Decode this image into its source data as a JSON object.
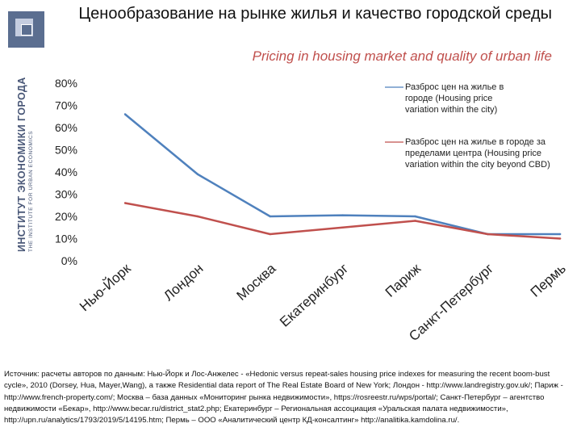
{
  "header": {
    "title_ru": "Ценообразование на рынке жилья и качество городской среды",
    "title_en": "Pricing in housing market and quality of urban life"
  },
  "sidebar_logo": {
    "icon": "institute-logo-icon",
    "name_ru": "ИНСТИТУТ ЭКОНОМИКИ ГОРОДА",
    "name_en": "THE INSTITUTE FOR URBAN ECONOMICS",
    "color": "#5b6e90"
  },
  "chart_data": {
    "type": "line",
    "title": "Ценообразование на рынке жилья и качество городской среды",
    "subtitle": "Pricing in housing market and quality of urban life",
    "categories": [
      "Нью-Йорк",
      "Лондон",
      "Москва",
      "Екатеринбург",
      "Париж",
      "Санкт-Петербург",
      "Пермь"
    ],
    "y_tick_labels": [
      "0%",
      "10%",
      "20%",
      "30%",
      "40%",
      "50%",
      "60%",
      "70%",
      "80%"
    ],
    "ylim": [
      0,
      80
    ],
    "grid": false,
    "legend_position": "right",
    "series": [
      {
        "name": "Разброс цен на жилье в городе (Housing price variation within the city)",
        "color": "#4f81bd",
        "values": [
          66,
          39,
          20,
          20.5,
          20,
          12,
          12
        ]
      },
      {
        "name": "Разброс цен на жилье в городе за пределами центра (Housing price variation within the city beyond CBD)",
        "color": "#c0504d",
        "values": [
          26,
          20,
          12,
          15,
          18,
          12,
          10
        ]
      }
    ]
  },
  "source_text": "Источник: расчеты авторов по данным: Нью-Йорк и Лос-Анжелес - «Hedonic versus repeat-sales housing price indexes for measuring the recent boom-bust cycle», 2010 (Dorsey, Hua, Mayer,Wang), а также Residential data report of The Real Estate Board of New York; Лондон - http://www.landregistry.gov.uk/; Париж - http://www.french-property.com/; Москва – база данных «Мониторинг рынка недвижимости», https://rosreestr.ru/wps/portal/; Санкт-Петербург – агентство недвижимости «Бекар», http://www.becar.ru/district_stat2.php; Екатеринбург – Региональная ассоциация «Уральская палата недвижимости», http://upn.ru/analytics/1793/2019/5/14195.htm; Пермь – ООО «Аналитический центр КД-консалтинг» http://analitika.kamdolina.ru/."
}
